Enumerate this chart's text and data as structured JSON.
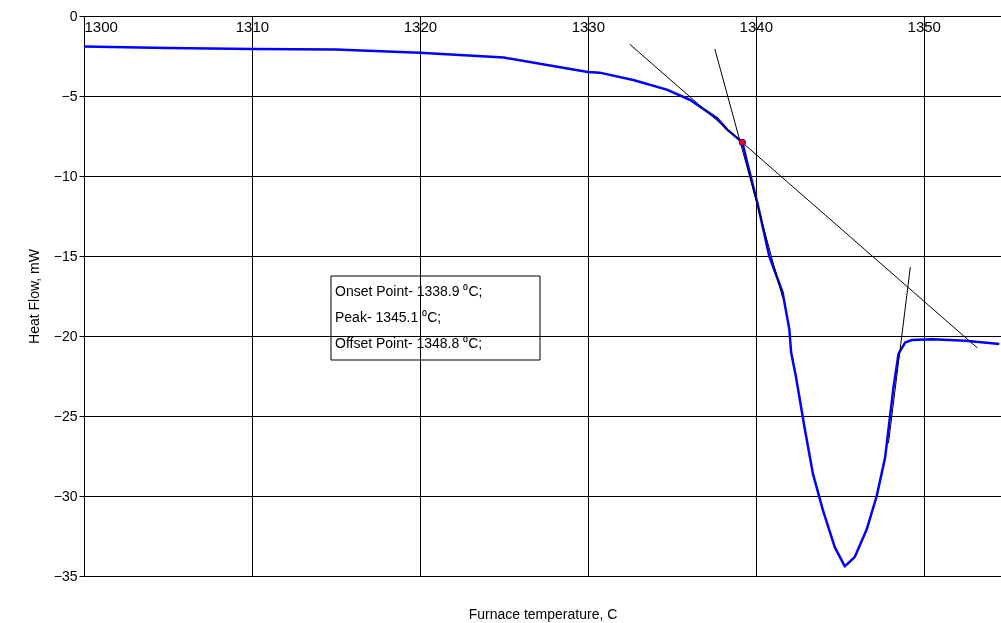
{
  "chart_data": {
    "type": "line",
    "xlabel": "Furnace temperature, C",
    "ylabel": "Heat Flow, mW",
    "xlim": [
      1300,
      1354.6
    ],
    "xticks": [
      1300,
      1310,
      1320,
      1330,
      1340,
      1350
    ],
    "ylim": [
      -35,
      0
    ],
    "yticks": [
      0,
      -5,
      -10,
      -15,
      -20,
      -25,
      -30,
      -35
    ],
    "grid": true,
    "annotations": [
      "Onset Point- 1338.9 ⁰C;",
      "Peak- 1345.1 ⁰C;",
      "Offset Point- 1348.8 ⁰C;"
    ],
    "series": [
      {
        "color": "#0000ff",
        "x": [
          1300,
          1305,
          1310,
          1315,
          1320,
          1325,
          1330,
          1330.7,
          1332.7,
          1334.7,
          1336.1,
          1337.7,
          1338.3,
          1339.2,
          1339.5,
          1340.1,
          1340.8,
          1341.6,
          1342.0,
          1342.1,
          1342.4,
          1342.9,
          1343.4,
          1344.0,
          1344.7,
          1345.3,
          1345.9,
          1346.6,
          1347.2,
          1347.7,
          1348.2,
          1348.5,
          1348.9,
          1349.3,
          1350.5,
          1352.5,
          1354.5
        ],
        "values": [
          -1.9,
          -2.0,
          -2.06,
          -2.1,
          -2.3,
          -2.6,
          -3.5,
          -3.54,
          -4.0,
          -4.6,
          -5.25,
          -6.4,
          -7.1,
          -7.9,
          -9.2,
          -11.7,
          -15.0,
          -17.3,
          -19.6,
          -21.0,
          -22.6,
          -25.7,
          -28.6,
          -30.9,
          -33.2,
          -34.4,
          -33.8,
          -32.1,
          -30.0,
          -27.6,
          -23.2,
          -21.1,
          -20.4,
          -20.25,
          -20.2,
          -20.3,
          -20.5
        ]
      },
      {
        "type": "line",
        "color": "#000000",
        "x": [
          1332.5,
          1353.2
        ],
        "values": [
          -1.77,
          -20.75
        ]
      },
      {
        "type": "line",
        "color": "#000000",
        "x": [
          1337.56,
          1341.6
        ],
        "values": [
          -2.06,
          -17.6
        ]
      },
      {
        "type": "line",
        "color": "#000000",
        "x": [
          1349.2,
          1347.9
        ],
        "values": [
          -15.7,
          -26.7
        ]
      },
      {
        "type": "scatter",
        "color": "#ff0000",
        "x": [
          1339.2
        ],
        "values": [
          -7.9
        ]
      }
    ]
  }
}
